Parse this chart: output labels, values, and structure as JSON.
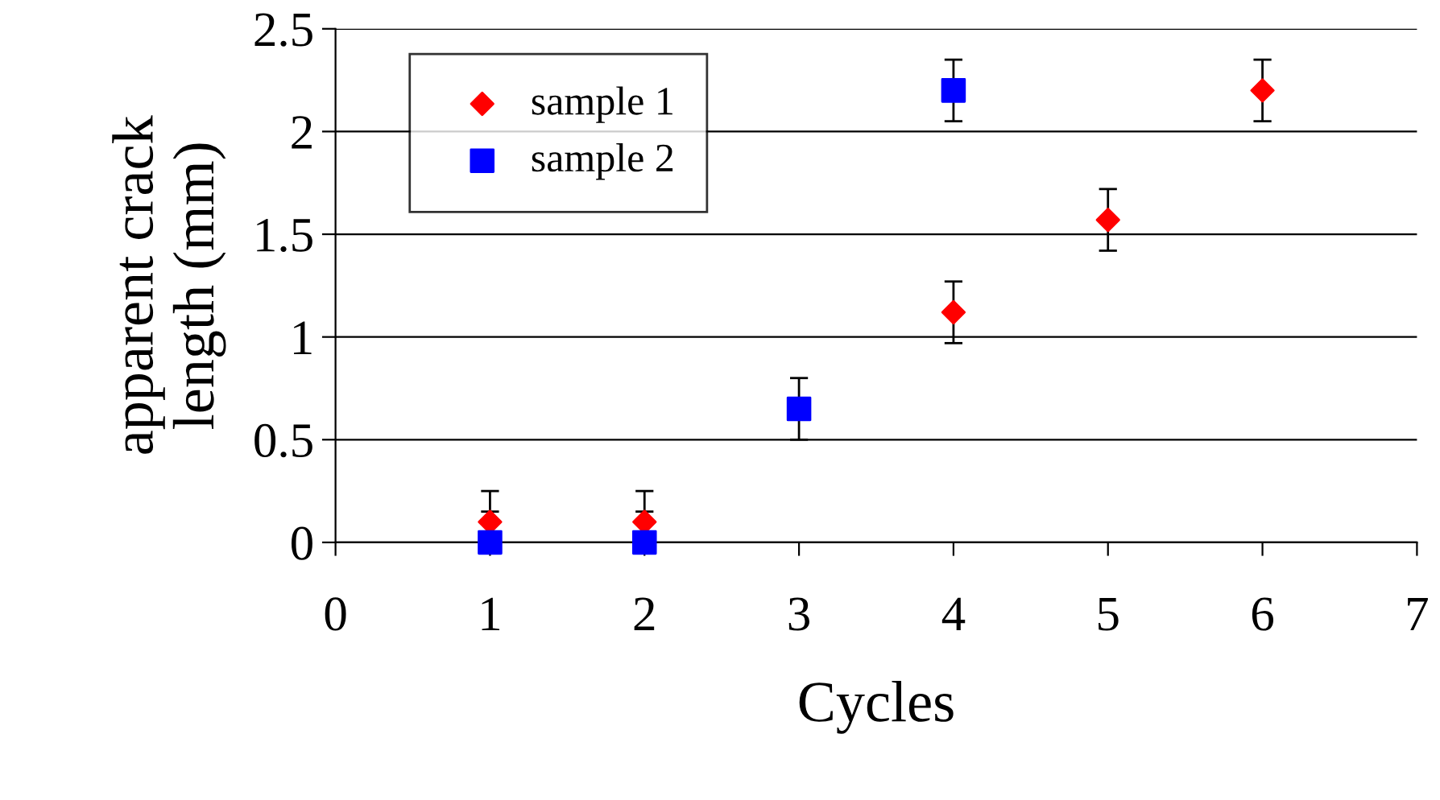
{
  "chart_data": {
    "type": "scatter",
    "xlabel": "Cycles",
    "ylabel": "apparent crack\nlength (mm)",
    "xlim": [
      0,
      7
    ],
    "xticks": [
      0,
      1,
      2,
      3,
      4,
      5,
      6,
      7
    ],
    "ylim": [
      0,
      2.5
    ],
    "yticks": [
      0,
      0.5,
      1,
      1.5,
      2,
      2.5
    ],
    "grid": "y",
    "legend": "top left",
    "series": [
      {
        "name": "sample 1",
        "color": "#ff0000",
        "marker": "diamond",
        "x": [
          1,
          2,
          4,
          5,
          6
        ],
        "values": [
          0.1,
          0.1,
          1.12,
          1.57,
          2.2
        ],
        "errors": [
          [
            0.1,
            0.25
          ],
          [
            0.1,
            0.25
          ],
          0.15,
          0.15,
          0.15
        ]
      },
      {
        "name": "sample 2",
        "color": "#0000ff",
        "marker": "square",
        "x": [
          1,
          2,
          3,
          4
        ],
        "values": [
          0,
          0,
          0.65,
          2.2
        ],
        "errors": [
          [
            0,
            0.15
          ],
          [
            0,
            0.15
          ],
          0.15,
          0.15
        ]
      }
    ]
  }
}
